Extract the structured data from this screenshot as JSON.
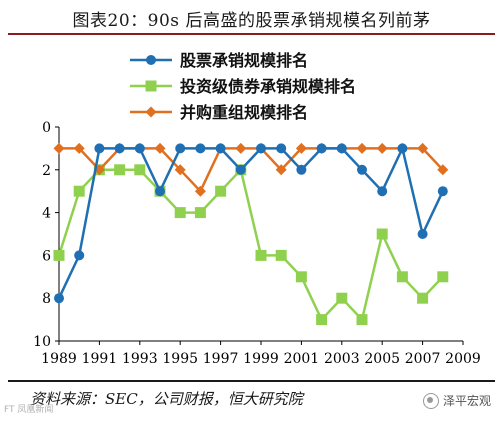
{
  "header": {
    "title": "图表20：90s 后高盛的股票承销规模名列前茅"
  },
  "footer": {
    "source": "资料来源：SEC，公司财报，恒大研究院",
    "watermark_left": "FT 凤凰新闻",
    "watermark_right": "泽平宏观"
  },
  "colors": {
    "series_1": "#1f6fb2",
    "series_2": "#8fd14f",
    "series_3": "#e07020",
    "title_rule": "#8a1c1c",
    "axis": "#000000"
  },
  "chart_data": {
    "type": "line",
    "title": "",
    "xlabel": "",
    "ylabel": "",
    "x_range": [
      1989,
      2009
    ],
    "x_ticks": [
      1989,
      1991,
      1993,
      1995,
      1997,
      1999,
      2001,
      2003,
      2005,
      2007,
      2009
    ],
    "y_range": [
      0,
      10
    ],
    "y_inverted": true,
    "y_ticks": [
      0,
      2,
      4,
      6,
      8,
      10
    ],
    "grid": false,
    "legend_position": "top",
    "x": [
      1989,
      1990,
      1991,
      1992,
      1993,
      1994,
      1995,
      1996,
      1997,
      1998,
      1999,
      2000,
      2001,
      2002,
      2003,
      2004,
      2005,
      2006,
      2007,
      2008
    ],
    "series": [
      {
        "name": "股票承销规模排名",
        "marker": "circle",
        "values": [
          8,
          6,
          1,
          1,
          1,
          3,
          1,
          1,
          1,
          2,
          1,
          1,
          2,
          1,
          1,
          2,
          3,
          1,
          5,
          3
        ]
      },
      {
        "name": "投资级债券承销规模排名",
        "marker": "square",
        "values": [
          6,
          3,
          2,
          2,
          2,
          3,
          4,
          4,
          3,
          2,
          6,
          6,
          7,
          9,
          8,
          9,
          5,
          7,
          8,
          7
        ]
      },
      {
        "name": "并购重组规模排名",
        "marker": "diamond",
        "values": [
          1,
          1,
          2,
          1,
          1,
          1,
          2,
          3,
          1,
          1,
          1,
          2,
          1,
          1,
          1,
          1,
          1,
          1,
          1,
          2
        ]
      }
    ]
  }
}
